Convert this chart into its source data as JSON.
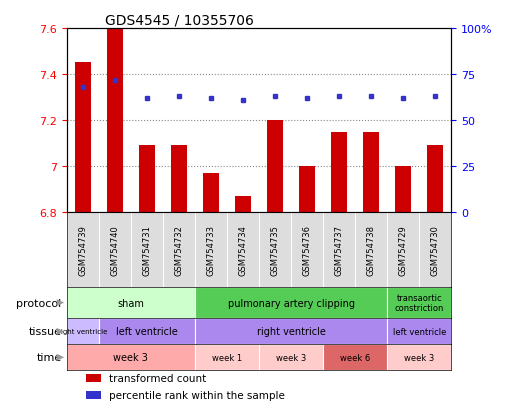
{
  "title": "GDS4545 / 10355706",
  "samples": [
    "GSM754739",
    "GSM754740",
    "GSM754731",
    "GSM754732",
    "GSM754733",
    "GSM754734",
    "GSM754735",
    "GSM754736",
    "GSM754737",
    "GSM754738",
    "GSM754729",
    "GSM754730"
  ],
  "red_values": [
    7.45,
    7.6,
    7.09,
    7.09,
    6.97,
    6.87,
    7.2,
    7.0,
    7.15,
    7.15,
    7.0,
    7.09
  ],
  "blue_values": [
    68,
    72,
    62,
    63,
    62,
    61,
    63,
    62,
    63,
    63,
    62,
    63
  ],
  "ylim_left": [
    6.8,
    7.6
  ],
  "yticks_left": [
    6.8,
    7.0,
    7.2,
    7.4,
    7.6
  ],
  "ytick_labels_left": [
    "6.8",
    "7",
    "7.2",
    "7.4",
    "7.6"
  ],
  "yticks_right": [
    0,
    25,
    50,
    75,
    100
  ],
  "ytick_labels_right": [
    "0",
    "25",
    "50",
    "75",
    "100%"
  ],
  "bar_color": "#cc0000",
  "dot_color": "#3333cc",
  "grid_color": "#888888",
  "protocol_segments": [
    {
      "text": "sham",
      "start": 0,
      "end": 4,
      "color": "#ccffcc"
    },
    {
      "text": "pulmonary artery clipping",
      "start": 4,
      "end": 10,
      "color": "#55cc55"
    },
    {
      "text": "transaortic\nconstriction",
      "start": 10,
      "end": 12,
      "color": "#55cc55"
    }
  ],
  "tissue_segments": [
    {
      "text": "right ventricle",
      "start": 0,
      "end": 1,
      "color": "#ccbbff"
    },
    {
      "text": "left ventricle",
      "start": 1,
      "end": 4,
      "color": "#aa88ee"
    },
    {
      "text": "right ventricle",
      "start": 4,
      "end": 10,
      "color": "#aa88ee"
    },
    {
      "text": "left ventricle",
      "start": 10,
      "end": 12,
      "color": "#aa88ee"
    }
  ],
  "time_segments": [
    {
      "text": "week 3",
      "start": 0,
      "end": 4,
      "color": "#ffaaaa"
    },
    {
      "text": "week 1",
      "start": 4,
      "end": 6,
      "color": "#ffcccc"
    },
    {
      "text": "week 3",
      "start": 6,
      "end": 8,
      "color": "#ffcccc"
    },
    {
      "text": "week 6",
      "start": 8,
      "end": 10,
      "color": "#dd6666"
    },
    {
      "text": "week 3",
      "start": 10,
      "end": 12,
      "color": "#ffcccc"
    }
  ],
  "row_labels": [
    "protocol",
    "tissue",
    "time"
  ],
  "legend_items": [
    {
      "label": "transformed count",
      "color": "#cc0000"
    },
    {
      "label": "percentile rank within the sample",
      "color": "#3333cc"
    }
  ],
  "sample_bg_color": "#dddddd",
  "arrow_color": "#999999"
}
